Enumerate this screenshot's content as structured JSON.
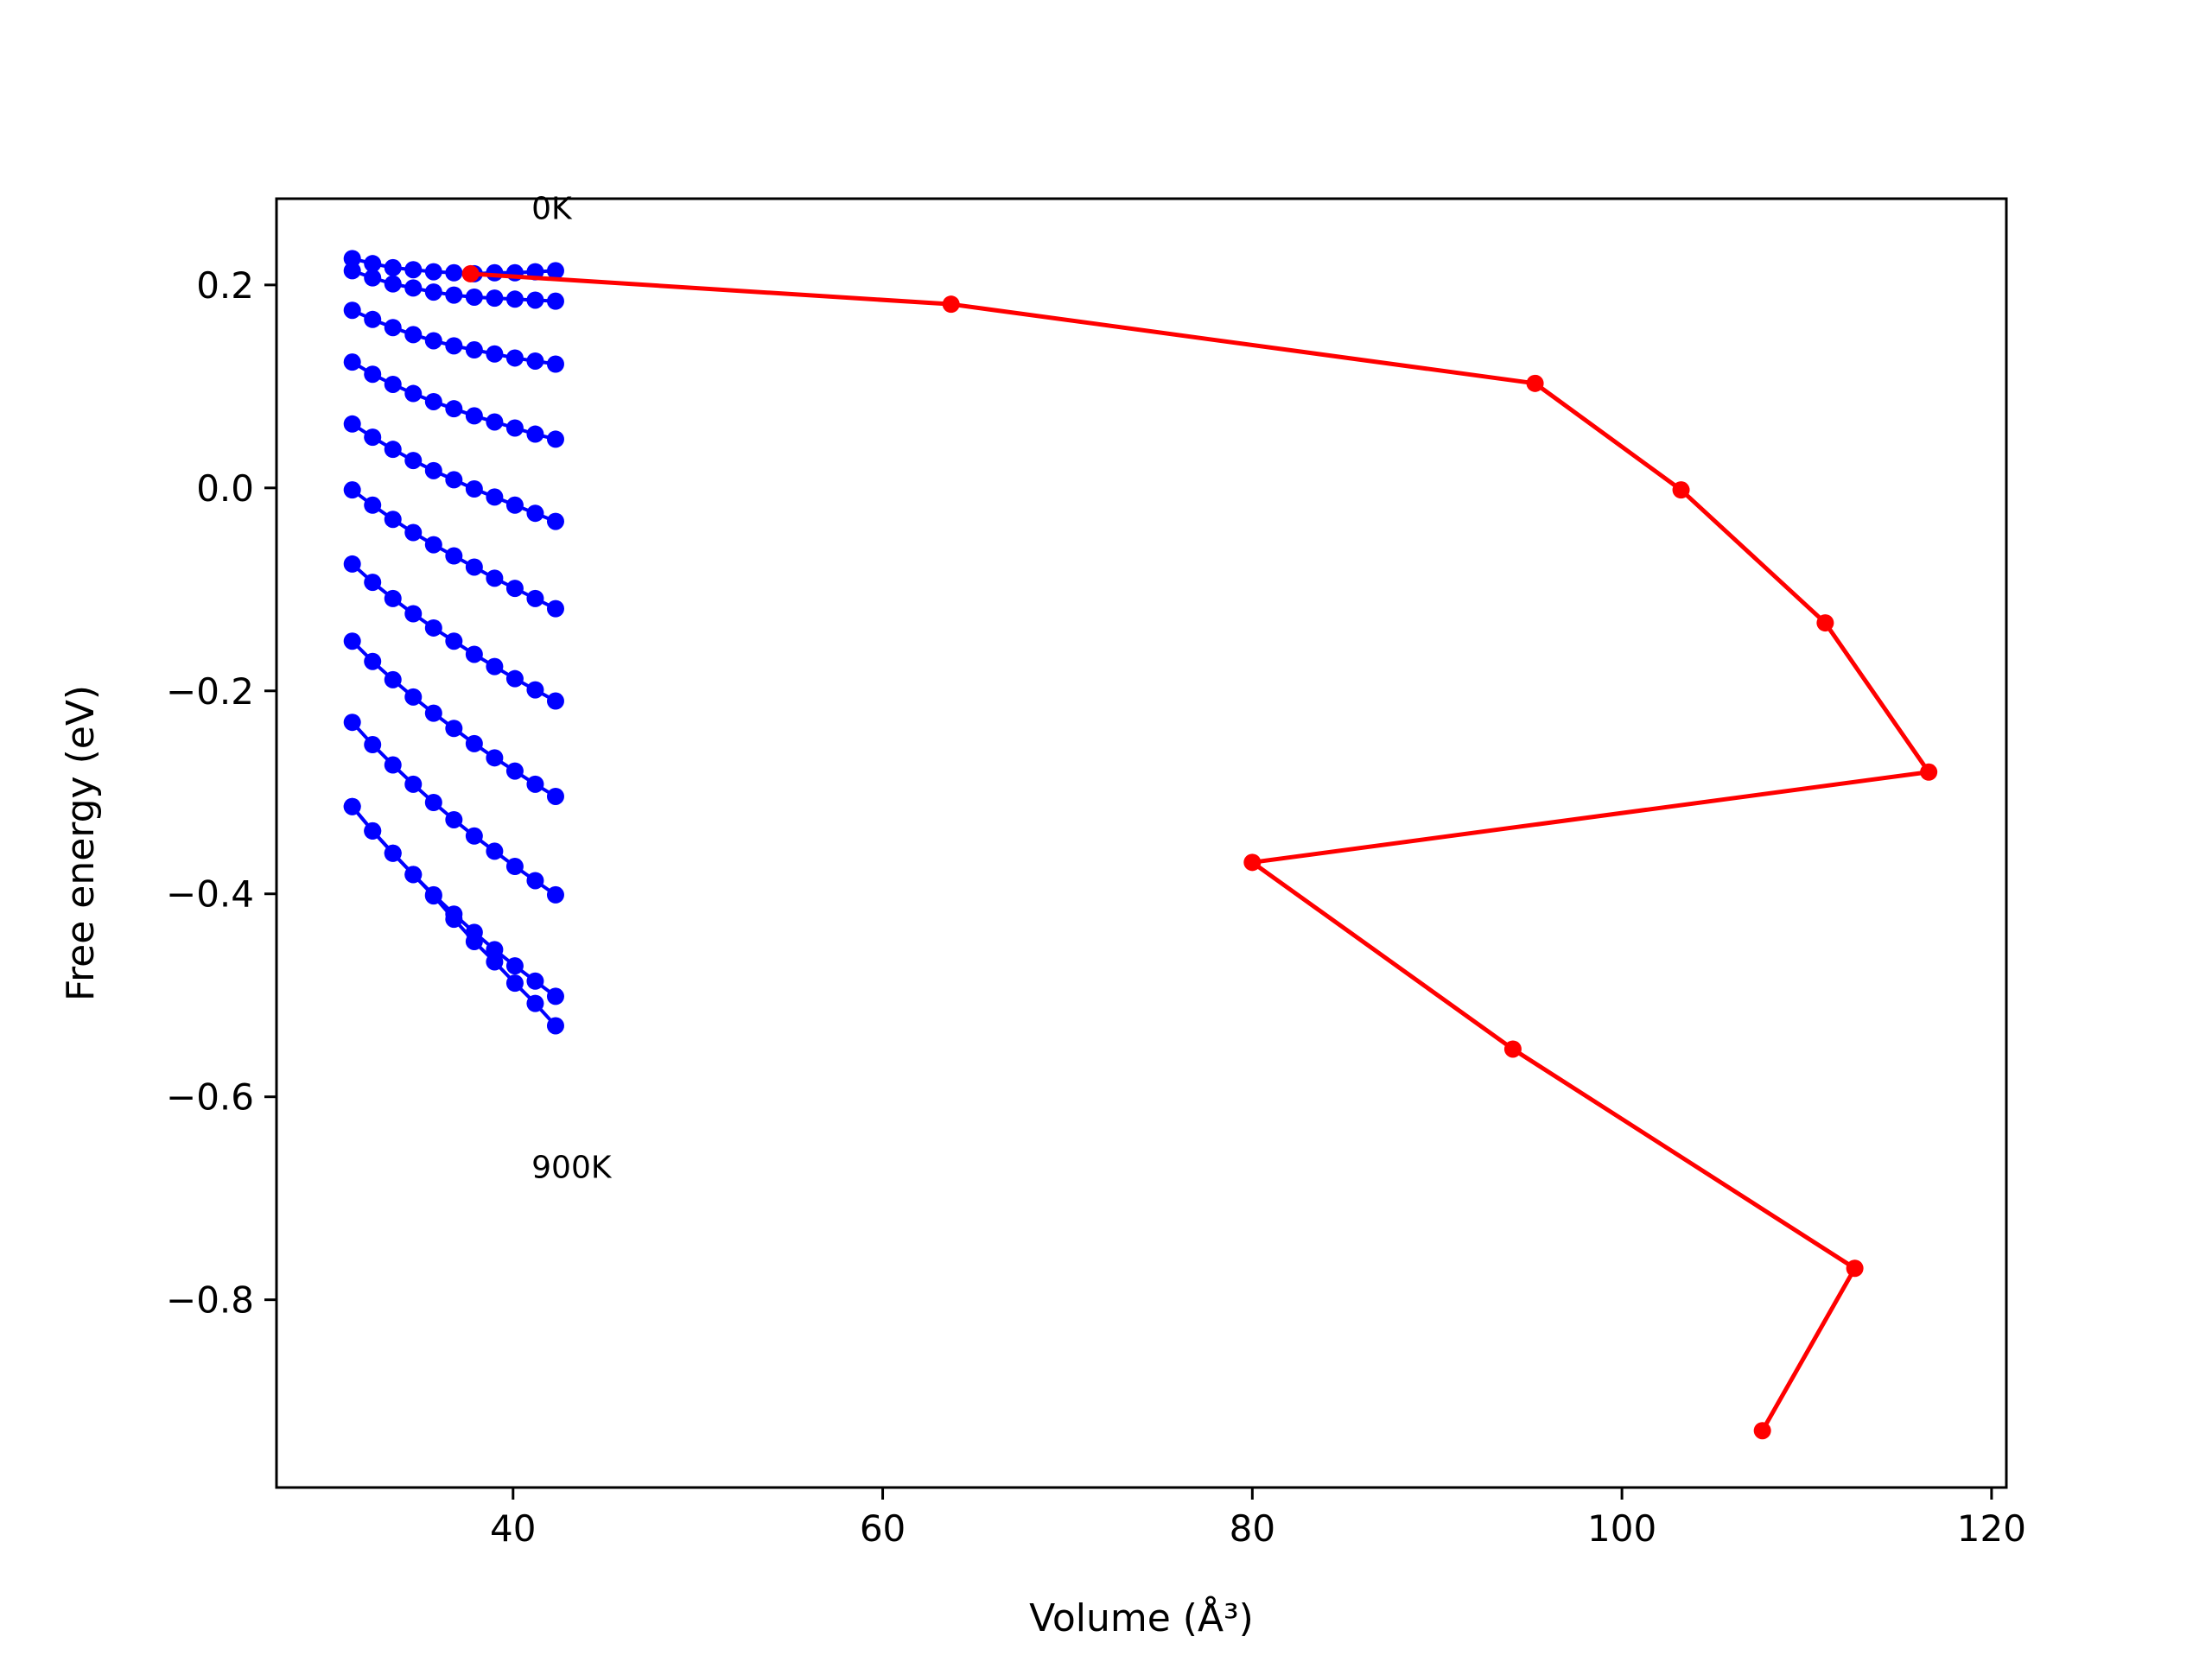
{
  "chart_data": {
    "type": "line",
    "title": "",
    "xlabel": "Volume (Å³)",
    "ylabel": "Free energy (eV)",
    "xlim": [
      27.2,
      120.8
    ],
    "ylim": [
      -0.985,
      0.285
    ],
    "xticks": [
      40,
      60,
      80,
      100,
      120
    ],
    "xtick_labels": [
      "40",
      "60",
      "80",
      "100",
      "120"
    ],
    "yticks": [
      0.2,
      0.0,
      -0.2,
      -0.4,
      -0.6,
      -0.8
    ],
    "ytick_labels": [
      "0.2",
      "0.0",
      "−0.2",
      "−0.4",
      "−0.6",
      "−0.8"
    ],
    "grid": false,
    "annotations": [
      {
        "text": "0K",
        "x": 41.0,
        "y": 0.265
      },
      {
        "text": "900K",
        "x": 41.0,
        "y": -0.68
      }
    ],
    "x": [
      31.3,
      32.4,
      33.5,
      34.6,
      35.7,
      36.8,
      37.9,
      39.0,
      40.1,
      41.2,
      42.3
    ],
    "series": [
      {
        "color": "#0000ff",
        "values": [
          0.226,
          0.221,
          0.217,
          0.215,
          0.213,
          0.212,
          0.211,
          0.212,
          0.212,
          0.213,
          0.214
        ]
      },
      {
        "color": "#0000ff",
        "values": [
          0.214,
          0.207,
          0.201,
          0.197,
          0.193,
          0.19,
          0.188,
          0.187,
          0.186,
          0.185,
          0.184
        ]
      },
      {
        "color": "#0000ff",
        "values": [
          0.175,
          0.166,
          0.158,
          0.151,
          0.145,
          0.14,
          0.136,
          0.132,
          0.128,
          0.125,
          0.122
        ]
      },
      {
        "color": "#0000ff",
        "values": [
          0.124,
          0.112,
          0.102,
          0.093,
          0.085,
          0.078,
          0.071,
          0.065,
          0.059,
          0.053,
          0.048
        ]
      },
      {
        "color": "#0000ff",
        "values": [
          0.063,
          0.05,
          0.038,
          0.027,
          0.017,
          0.008,
          -0.001,
          -0.009,
          -0.017,
          -0.025,
          -0.033
        ]
      },
      {
        "color": "#0000ff",
        "values": [
          -0.002,
          -0.017,
          -0.031,
          -0.044,
          -0.056,
          -0.067,
          -0.078,
          -0.089,
          -0.099,
          -0.109,
          -0.119
        ]
      },
      {
        "color": "#0000ff",
        "values": [
          -0.075,
          -0.093,
          -0.109,
          -0.124,
          -0.138,
          -0.151,
          -0.164,
          -0.176,
          -0.188,
          -0.199,
          -0.21
        ]
      },
      {
        "color": "#0000ff",
        "values": [
          -0.151,
          -0.171,
          -0.189,
          -0.206,
          -0.222,
          -0.237,
          -0.252,
          -0.266,
          -0.279,
          -0.292,
          -0.304
        ]
      },
      {
        "color": "#0000ff",
        "values": [
          -0.231,
          -0.253,
          -0.273,
          -0.292,
          -0.31,
          -0.327,
          -0.343,
          -0.358,
          -0.373,
          -0.387,
          -0.401
        ]
      },
      {
        "color": "#0000ff",
        "values": [
          -0.314,
          -0.338,
          -0.36,
          -0.381,
          -0.401,
          -0.42,
          -0.438,
          -0.455,
          -0.471,
          -0.486,
          -0.501
        ]
      },
      {
        "color": "#0000ff",
        "values": [
          -0.314,
          -0.338,
          -0.36,
          -0.381,
          -0.402,
          -0.425,
          -0.447,
          -0.467,
          -0.488,
          -0.508,
          -0.53
        ]
      }
    ],
    "minimum_path": {
      "color": "#ff0000",
      "x": [
        37.7,
        63.7,
        95.3,
        103.2,
        111.0,
        116.6,
        80.0,
        94.1,
        112.6,
        107.6
      ],
      "y": [
        0.211,
        0.181,
        0.103,
        -0.002,
        -0.133,
        -0.28,
        -0.369,
        -0.553,
        -0.769,
        -0.929
      ]
    }
  }
}
